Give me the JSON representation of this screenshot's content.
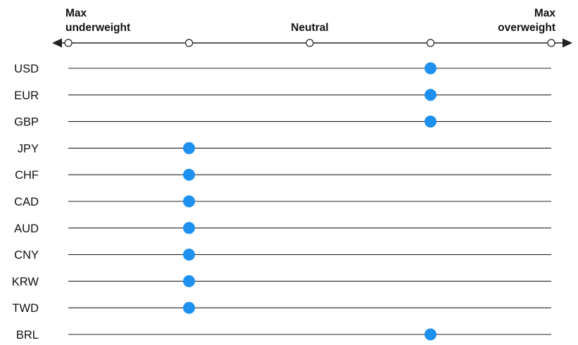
{
  "chart_data": {
    "type": "scatter",
    "title": "",
    "scale": {
      "min": -2,
      "max": 2,
      "ticks": [
        -2,
        -1,
        0,
        1,
        2
      ],
      "labels": [
        {
          "at": -2,
          "lines": [
            "Max",
            "underweight"
          ],
          "align": "left"
        },
        {
          "at": 0,
          "lines": [
            "Neutral"
          ],
          "align": "center"
        },
        {
          "at": 2,
          "lines": [
            "Max",
            "overweight"
          ],
          "align": "right"
        }
      ]
    },
    "categories": [
      "USD",
      "EUR",
      "GBP",
      "JPY",
      "CHF",
      "CAD",
      "AUD",
      "CNY",
      "KRW",
      "TWD",
      "BRL"
    ],
    "values": [
      1,
      1,
      1,
      -1,
      -1,
      -1,
      -1,
      -1,
      -1,
      -1,
      1
    ],
    "grid": true,
    "legend": "none"
  },
  "colors": {
    "marker": "#1e90f0",
    "line": "#222222",
    "text": "#111111",
    "tick_fill": "#ffffff"
  }
}
